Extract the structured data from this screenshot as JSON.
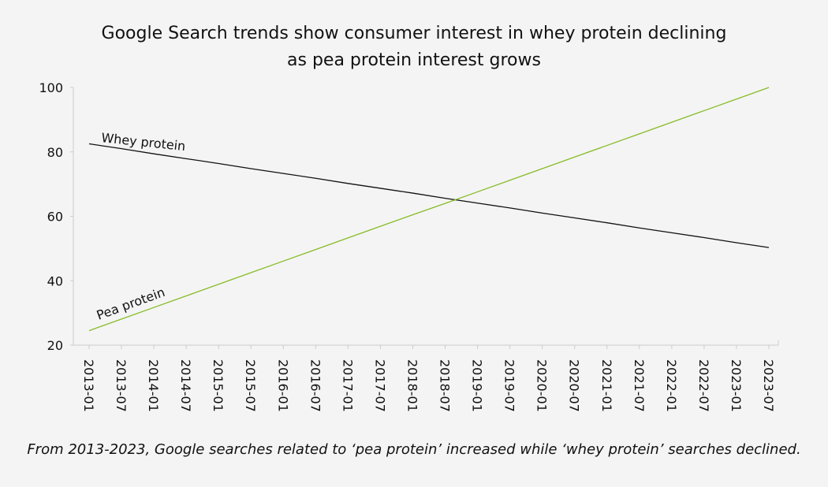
{
  "chart_data": {
    "type": "line",
    "title": "Google Search trends show consumer interest in whey protein declining as pea protein interest grows",
    "caption": "From 2013-2023, Google searches related to ‘pea protein’ increased while ‘whey protein’ searches declined.",
    "categories": [
      "2013-01",
      "2013-07",
      "2014-01",
      "2014-07",
      "2015-01",
      "2015-07",
      "2016-01",
      "2016-07",
      "2017-01",
      "2017-07",
      "2018-01",
      "2018-07",
      "2019-01",
      "2019-07",
      "2020-01",
      "2020-07",
      "2021-01",
      "2021-07",
      "2022-01",
      "2022-07",
      "2023-01",
      "2023-07"
    ],
    "series": [
      {
        "name": "Whey protein",
        "color": "#111111",
        "values": [
          82.5,
          81.0,
          79.4,
          77.9,
          76.4,
          74.8,
          73.3,
          71.8,
          70.2,
          68.7,
          67.2,
          65.6,
          64.1,
          62.6,
          61.0,
          59.5,
          58.0,
          56.4,
          54.9,
          53.4,
          51.8,
          50.3
        ]
      },
      {
        "name": "Pea protein",
        "color": "#86bc25",
        "values": [
          24.5,
          28.1,
          31.7,
          35.3,
          38.9,
          42.5,
          46.1,
          49.7,
          53.3,
          56.9,
          60.5,
          64.0,
          67.6,
          71.2,
          74.8,
          78.4,
          82.0,
          85.6,
          89.2,
          92.8,
          96.4,
          100.0
        ]
      }
    ],
    "ylim": [
      20,
      100
    ],
    "yticks": [
      20,
      40,
      60,
      80,
      100
    ],
    "grid": false
  }
}
